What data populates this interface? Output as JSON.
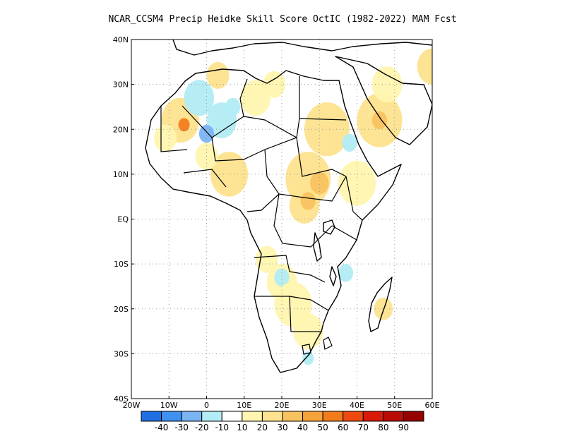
{
  "title": "NCAR_CCSM4 Precip Heidke Skill Score OctIC (1982-2022) MAM Fcst",
  "map": {
    "lon_range": [
      -20,
      60
    ],
    "lat_range": [
      -40,
      40
    ],
    "grid": "dotted",
    "x_ticks": [
      {
        "lon": -20,
        "label": "20W"
      },
      {
        "lon": -10,
        "label": "10W"
      },
      {
        "lon": 0,
        "label": "0"
      },
      {
        "lon": 10,
        "label": "10E"
      },
      {
        "lon": 20,
        "label": "20E"
      },
      {
        "lon": 30,
        "label": "30E"
      },
      {
        "lon": 40,
        "label": "40E"
      },
      {
        "lon": 50,
        "label": "50E"
      },
      {
        "lon": 60,
        "label": "60E"
      }
    ],
    "y_ticks": [
      {
        "lat": 40,
        "label": "40N"
      },
      {
        "lat": 30,
        "label": "30N"
      },
      {
        "lat": 20,
        "label": "20N"
      },
      {
        "lat": 10,
        "label": "10N"
      },
      {
        "lat": 0,
        "label": "EQ"
      },
      {
        "lat": -10,
        "label": "10S"
      },
      {
        "lat": -20,
        "label": "20S"
      },
      {
        "lat": -30,
        "label": "30S"
      },
      {
        "lat": -40,
        "label": "40S"
      }
    ]
  },
  "colorbar": {
    "colors": [
      "#1f6fe0",
      "#3f91ef",
      "#7ab4f4",
      "#b2ecf4",
      "#ffffff",
      "#fff5b0",
      "#fde38e",
      "#f9c260",
      "#f6a23a",
      "#f27c1c",
      "#ee4a10",
      "#d81a08",
      "#b90c04",
      "#960000"
    ],
    "labels": [
      "-40",
      "-30",
      "-20",
      "-10",
      "10",
      "20",
      "30",
      "40",
      "50",
      "60",
      "70",
      "80",
      "90"
    ]
  },
  "regions": [
    {
      "lat": 22,
      "lon": -7,
      "r": 5,
      "value": 20
    },
    {
      "lat": 21,
      "lon": -6,
      "r": 1.5,
      "value": 50
    },
    {
      "lat": 18,
      "lon": -11,
      "r": 3,
      "value": 10
    },
    {
      "lat": 27,
      "lon": -2,
      "r": 4,
      "value": -10
    },
    {
      "lat": 22,
      "lon": 4,
      "r": 4,
      "value": -10
    },
    {
      "lat": 19,
      "lon": 0,
      "r": 2,
      "value": -20
    },
    {
      "lat": 25,
      "lon": 7,
      "r": 2,
      "value": -10
    },
    {
      "lat": 32,
      "lon": 3,
      "r": 3,
      "value": 20
    },
    {
      "lat": 27,
      "lon": 13,
      "r": 4,
      "value": 10
    },
    {
      "lat": 30,
      "lon": 18,
      "r": 3,
      "value": 10
    },
    {
      "lat": 20,
      "lon": 32,
      "r": 6,
      "value": 20
    },
    {
      "lat": 22,
      "lon": 46,
      "r": 6,
      "value": 20
    },
    {
      "lat": 22,
      "lon": 46,
      "r": 2,
      "value": 30
    },
    {
      "lat": 30,
      "lon": 48,
      "r": 4,
      "value": 10
    },
    {
      "lat": 34,
      "lon": 60,
      "r": 4,
      "value": 20
    },
    {
      "lat": 10,
      "lon": 6,
      "r": 5,
      "value": 20
    },
    {
      "lat": 14,
      "lon": 0,
      "r": 3,
      "value": 10
    },
    {
      "lat": 9,
      "lon": 27,
      "r": 6,
      "value": 20
    },
    {
      "lat": 8,
      "lon": 30,
      "r": 2.5,
      "value": 30
    },
    {
      "lat": 3,
      "lon": 26,
      "r": 4,
      "value": 20
    },
    {
      "lat": 4,
      "lon": 27,
      "r": 2,
      "value": 30
    },
    {
      "lat": 8,
      "lon": 40,
      "r": 5,
      "value": 10
    },
    {
      "lat": 17,
      "lon": 38,
      "r": 2,
      "value": -10
    },
    {
      "lat": -9,
      "lon": 16,
      "r": 3,
      "value": 10
    },
    {
      "lat": -14,
      "lon": 20,
      "r": 4,
      "value": 10
    },
    {
      "lat": -13,
      "lon": 20,
      "r": 2,
      "value": -10
    },
    {
      "lat": -12,
      "lon": 37,
      "r": 2,
      "value": -10
    },
    {
      "lat": -19,
      "lon": 23,
      "r": 5,
      "value": 10
    },
    {
      "lat": -25,
      "lon": 27,
      "r": 4,
      "value": 10
    },
    {
      "lat": -20,
      "lon": 47,
      "r": 2.5,
      "value": 20
    },
    {
      "lat": -31,
      "lon": 27,
      "r": 1.5,
      "value": -10
    }
  ]
}
